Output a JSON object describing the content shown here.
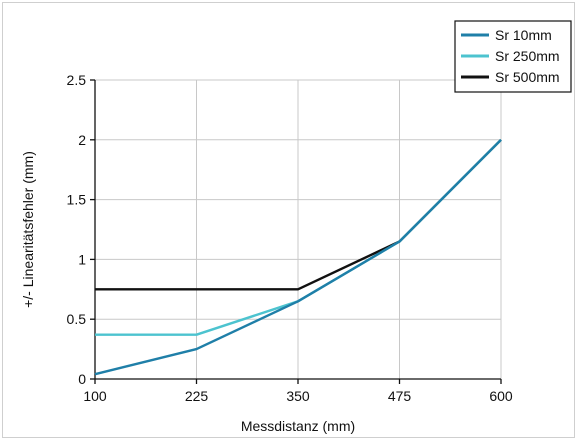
{
  "chart_data": {
    "type": "line",
    "title": "",
    "xlabel": "Messdistanz (mm)",
    "ylabel": "+/- Linearitätsfehler (mm)",
    "x": [
      100,
      225,
      350,
      475,
      600
    ],
    "x_tick_labels": [
      "100",
      "225",
      "350",
      "475",
      "600"
    ],
    "y_tick_labels": [
      "0",
      "0.5",
      "1",
      "1.5",
      "2",
      "2.5"
    ],
    "y_ticks": [
      0,
      0.5,
      1,
      1.5,
      2,
      2.5
    ],
    "xlim": [
      100,
      600
    ],
    "ylim": [
      0,
      2.5
    ],
    "grid": true,
    "legend_position": "top-right",
    "series": [
      {
        "name": "Sr 10mm",
        "color": "#1f7fa8",
        "values": [
          0.04,
          0.25,
          0.65,
          1.15,
          2.0
        ]
      },
      {
        "name": "Sr 250mm",
        "color": "#4cc3cf",
        "values": [
          0.37,
          0.37,
          0.65,
          1.15,
          2.0
        ]
      },
      {
        "name": "Sr 500mm",
        "color": "#111111",
        "values": [
          0.75,
          0.75,
          0.75,
          1.15,
          2.0
        ]
      }
    ]
  }
}
